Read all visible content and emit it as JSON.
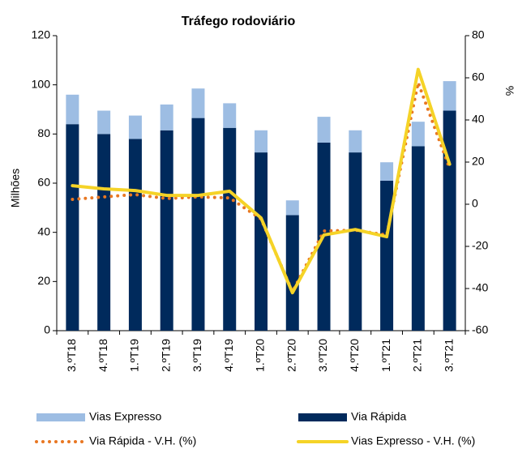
{
  "chart_data": {
    "type": "bar",
    "stacked": true,
    "title": "Tráfego rodoviário",
    "ylabel": "Milhões",
    "y2label": "%",
    "categories": [
      "3.ºT18",
      "4.ºT18",
      "1.ºT19",
      "2.ºT19",
      "3.ºT19",
      "4.ºT19",
      "1.ºT20",
      "2.ºT20",
      "3.ºT20",
      "4.ºT20",
      "1.ºT21",
      "2.ºT21",
      "3.ºT21"
    ],
    "series": [
      {
        "name": "Via Rápida",
        "type": "bar",
        "color": "#002a5c",
        "values": [
          84,
          80,
          78,
          81.5,
          86.5,
          82.5,
          72.5,
          47,
          76.5,
          72.5,
          61,
          75,
          89.5
        ]
      },
      {
        "name": "Vias Expresso",
        "type": "bar",
        "color": "#9dbde3",
        "values": [
          12,
          9.5,
          9.5,
          10.5,
          12,
          10,
          9,
          6,
          10.5,
          9,
          7.5,
          10,
          12
        ]
      },
      {
        "name": "Via Rápida - V.H. (%)",
        "type": "line",
        "axis": "y2",
        "style": "dotted",
        "color": "#e87722",
        "values": [
          2.3,
          3.5,
          4.6,
          2.7,
          3.5,
          3,
          -7,
          -41.5,
          -12.7,
          -12.3,
          -14.6,
          57.7,
          17
        ]
      },
      {
        "name": "Vias Expresso - V.H. (%)",
        "type": "line",
        "axis": "y2",
        "style": "solid",
        "color": "#f5d327",
        "values": [
          8.8,
          7.3,
          6.5,
          4.2,
          4.2,
          6.2,
          -6.5,
          -42,
          -14.6,
          -12,
          -15.4,
          64,
          19
        ]
      }
    ],
    "ylim": [
      0,
      120
    ],
    "yticks": [
      0,
      20,
      40,
      60,
      80,
      100,
      120
    ],
    "y2lim": [
      -60,
      80
    ],
    "y2ticks": [
      -60,
      -40,
      -20,
      0,
      20,
      40,
      60,
      80
    ],
    "grid": false
  }
}
